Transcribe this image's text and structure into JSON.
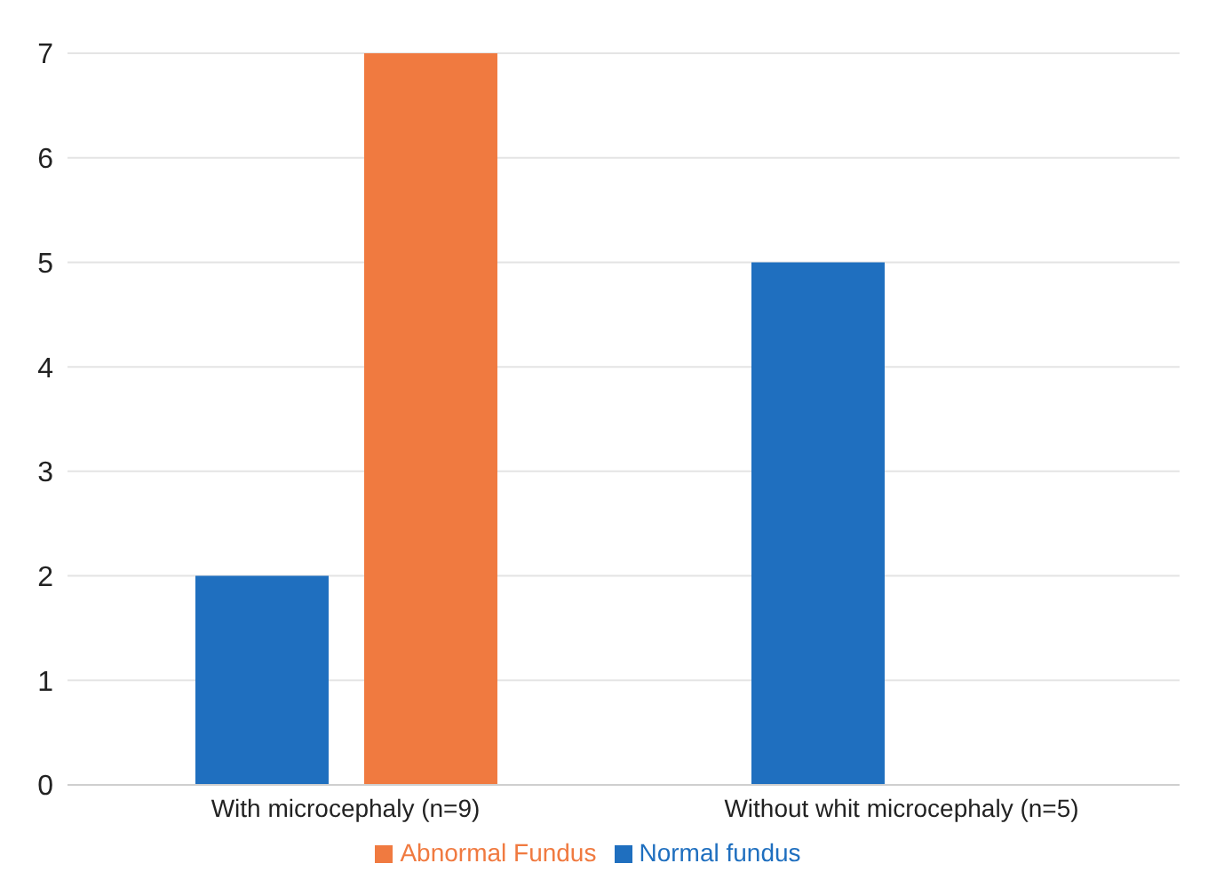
{
  "chart_data": {
    "type": "bar",
    "categories": [
      "With microcephaly (n=9)",
      "Without whit microcephaly (n=5)"
    ],
    "series": [
      {
        "name": "Normal fundus",
        "color": "#1f6fbf",
        "values": [
          2,
          5
        ]
      },
      {
        "name": "Abnormal Fundus",
        "color": "#f07a40",
        "values": [
          7,
          0
        ]
      }
    ],
    "ylim": [
      0,
      7
    ],
    "yticks": [
      0,
      1,
      2,
      3,
      4,
      5,
      6,
      7
    ],
    "grid": "y",
    "legend": "bottom"
  }
}
